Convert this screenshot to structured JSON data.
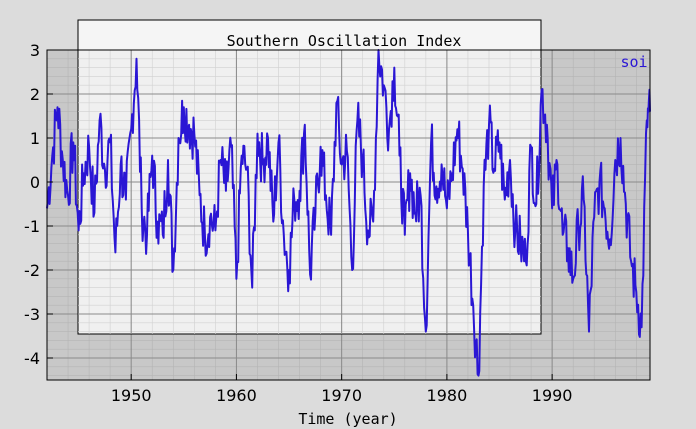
{
  "chart_data": {
    "type": "line",
    "title": "Southern Oscillation Index",
    "xlabel": "Time (year)",
    "ylabel": "",
    "xlim": [
      1942,
      1999.3
    ],
    "ylim": [
      -4.5,
      3
    ],
    "x_ticks": [
      1950,
      1960,
      1970,
      1980,
      1990
    ],
    "y_ticks": [
      3,
      2,
      1,
      0,
      -1,
      -2,
      -3,
      -4
    ],
    "grid": true,
    "legend": {
      "position": "top-right",
      "entries": [
        "soi"
      ]
    },
    "series": [
      {
        "name": "soi",
        "color": "#2a16d4",
        "x": [
          1942.0,
          1942.5,
          1943.0,
          1943.5,
          1944.0,
          1944.5,
          1945.0,
          1945.5,
          1946.0,
          1946.5,
          1947.0,
          1947.5,
          1948.0,
          1948.5,
          1949.0,
          1949.5,
          1950.0,
          1950.5,
          1951.0,
          1951.5,
          1952.0,
          1952.5,
          1953.0,
          1953.5,
          1954.0,
          1954.5,
          1955.0,
          1955.5,
          1956.0,
          1956.5,
          1957.0,
          1957.5,
          1958.0,
          1958.5,
          1959.0,
          1959.5,
          1960.0,
          1960.5,
          1961.0,
          1961.5,
          1962.0,
          1962.5,
          1963.0,
          1963.5,
          1964.0,
          1964.5,
          1965.0,
          1965.5,
          1966.0,
          1966.5,
          1967.0,
          1967.5,
          1968.0,
          1968.5,
          1969.0,
          1969.5,
          1970.0,
          1970.5,
          1971.0,
          1971.5,
          1972.0,
          1972.5,
          1973.0,
          1973.5,
          1974.0,
          1974.5,
          1975.0,
          1975.5,
          1976.0,
          1976.5,
          1977.0,
          1977.5,
          1978.0,
          1978.5,
          1979.0,
          1979.5,
          1980.0,
          1980.5,
          1981.0,
          1981.5,
          1982.0,
          1982.5,
          1983.0,
          1983.5,
          1984.0,
          1984.5,
          1985.0,
          1985.5,
          1986.0,
          1986.5,
          1987.0,
          1987.5,
          1988.0,
          1988.5,
          1989.0,
          1989.5,
          1990.0,
          1990.5,
          1991.0,
          1991.5,
          1992.0,
          1992.5,
          1993.0,
          1993.5,
          1994.0,
          1994.5,
          1995.0,
          1995.5,
          1996.0,
          1996.5,
          1997.0,
          1997.5,
          1998.0,
          1998.5,
          1999.0,
          1999.3
        ],
        "y": [
          -0.6,
          0.6,
          1.7,
          0.5,
          -0.3,
          0.9,
          -1.1,
          0.2,
          0.8,
          -0.7,
          1.4,
          0.3,
          0.9,
          -1.6,
          0.4,
          -0.4,
          1.2,
          2.8,
          -0.6,
          -1.2,
          0.6,
          -0.9,
          -1.2,
          0.5,
          -2.0,
          1.0,
          1.7,
          1.3,
          1.1,
          -0.3,
          -1.2,
          -0.8,
          -1.1,
          0.5,
          -0.2,
          0.8,
          -2.2,
          0.6,
          0.3,
          -2.4,
          1.1,
          0.4,
          1.0,
          -0.9,
          0.9,
          -1.2,
          -2.0,
          -0.4,
          -0.2,
          1.3,
          -2.1,
          -0.7,
          0.8,
          -0.3,
          -1.2,
          1.8,
          0.4,
          0.7,
          -2.0,
          1.4,
          0.5,
          -1.1,
          -0.9,
          3.0,
          2.2,
          1.2,
          2.6,
          0.6,
          -1.2,
          0.2,
          -0.7,
          -0.3,
          -3.4,
          0.9,
          -0.1,
          0.4,
          -0.6,
          0.2,
          1.2,
          0.3,
          -1.1,
          -2.8,
          -4.4,
          -0.1,
          1.3,
          0.3,
          0.9,
          -0.4,
          0.5,
          -1.1,
          -1.4,
          -1.8,
          0.8,
          -0.5,
          2.1,
          1.3,
          -0.6,
          0.4,
          -1.2,
          -1.5,
          -2.2,
          -1.0,
          -0.4,
          -3.4,
          -0.8,
          0.0,
          -0.6,
          -1.3,
          0.5,
          1.0,
          -0.5,
          -1.8,
          -2.5,
          -3.3,
          1.4,
          1.6
        ]
      }
    ]
  }
}
